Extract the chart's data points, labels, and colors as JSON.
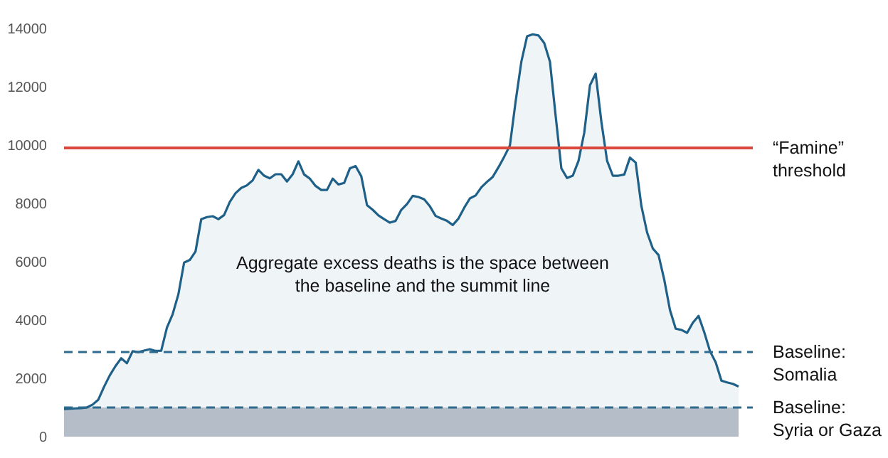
{
  "chart_data": {
    "type": "area",
    "ylim": [
      0,
      14000
    ],
    "yticks": [
      0,
      2000,
      4000,
      6000,
      8000,
      10000,
      12000,
      14000
    ],
    "grid": false,
    "line_style": "solid",
    "marker": "none",
    "annotations": [
      "Aggregate excess deaths is the space between\nthe baseline and the summit line"
    ],
    "bands": [
      {
        "axis": "y",
        "from": 0,
        "to": 1000,
        "color": "#c1c5cd"
      }
    ],
    "ref_lines": [
      {
        "axis": "y",
        "value": 9900,
        "label": "“Famine”\nthreshold",
        "color": "#d9483b",
        "line_style": "solid"
      },
      {
        "axis": "y",
        "value": 2900,
        "label": "Baseline:\nSomalia",
        "color": "#2f6b8e",
        "line_style": "dashed"
      },
      {
        "axis": "y",
        "value": 1000,
        "label": "Baseline:\nSyria or Gaza",
        "color": "#2f6b8e",
        "line_style": "dashed"
      }
    ],
    "categories": [
      null,
      null,
      null,
      null,
      null,
      null,
      null,
      null,
      null,
      null,
      null,
      null,
      null,
      null,
      null,
      null,
      null,
      null,
      null,
      null,
      null,
      null,
      null,
      null,
      null,
      null,
      null,
      null,
      null,
      null,
      null,
      null,
      null,
      null,
      null,
      null,
      null,
      null,
      null,
      null,
      null,
      null,
      null,
      null,
      null,
      null,
      null,
      null,
      null,
      null,
      null,
      null,
      null,
      null,
      null,
      null,
      null,
      null,
      null,
      null,
      null,
      null,
      null,
      null,
      null,
      null,
      null,
      null,
      null,
      null,
      null,
      null,
      null,
      null,
      null,
      null,
      null,
      null,
      null,
      null,
      null,
      null,
      null,
      null,
      null,
      null,
      null,
      null,
      null,
      null,
      null,
      null,
      null,
      null,
      null,
      null,
      null,
      null,
      null,
      null,
      null,
      null,
      null,
      null,
      null,
      null,
      null,
      null,
      null,
      null,
      null,
      null,
      null,
      null,
      null,
      null,
      null,
      null,
      null
    ],
    "series": [
      {
        "color": "#1f6088",
        "values": [
          950,
          960,
          970,
          980,
          1000,
          1100,
          1270,
          1710,
          2100,
          2420,
          2690,
          2520,
          2930,
          2900,
          2950,
          3000,
          2940,
          2950,
          3740,
          4200,
          4880,
          5970,
          6060,
          6350,
          7460,
          7530,
          7560,
          7460,
          7600,
          8050,
          8350,
          8530,
          8620,
          8790,
          9150,
          8950,
          8860,
          9000,
          9000,
          8750,
          9000,
          9440,
          8990,
          8850,
          8600,
          8460,
          8460,
          8850,
          8650,
          8700,
          9200,
          9280,
          8930,
          7940,
          7780,
          7590,
          7460,
          7340,
          7400,
          7780,
          7980,
          8260,
          8220,
          8140,
          7900,
          7570,
          7480,
          7400,
          7260,
          7480,
          7850,
          8170,
          8270,
          8550,
          8740,
          8910,
          9240,
          9600,
          9990,
          11500,
          12860,
          13730,
          13800,
          13760,
          13500,
          12860,
          11000,
          9200,
          8870,
          8950,
          9460,
          10420,
          12050,
          12450,
          10800,
          9460,
          8950,
          8950,
          8990,
          9570,
          9400,
          7910,
          7000,
          6450,
          6230,
          5380,
          4340,
          3700,
          3660,
          3560,
          3910,
          4140,
          3580,
          2930,
          2550,
          1920,
          1860,
          1810,
          1720
        ]
      }
    ]
  }
}
